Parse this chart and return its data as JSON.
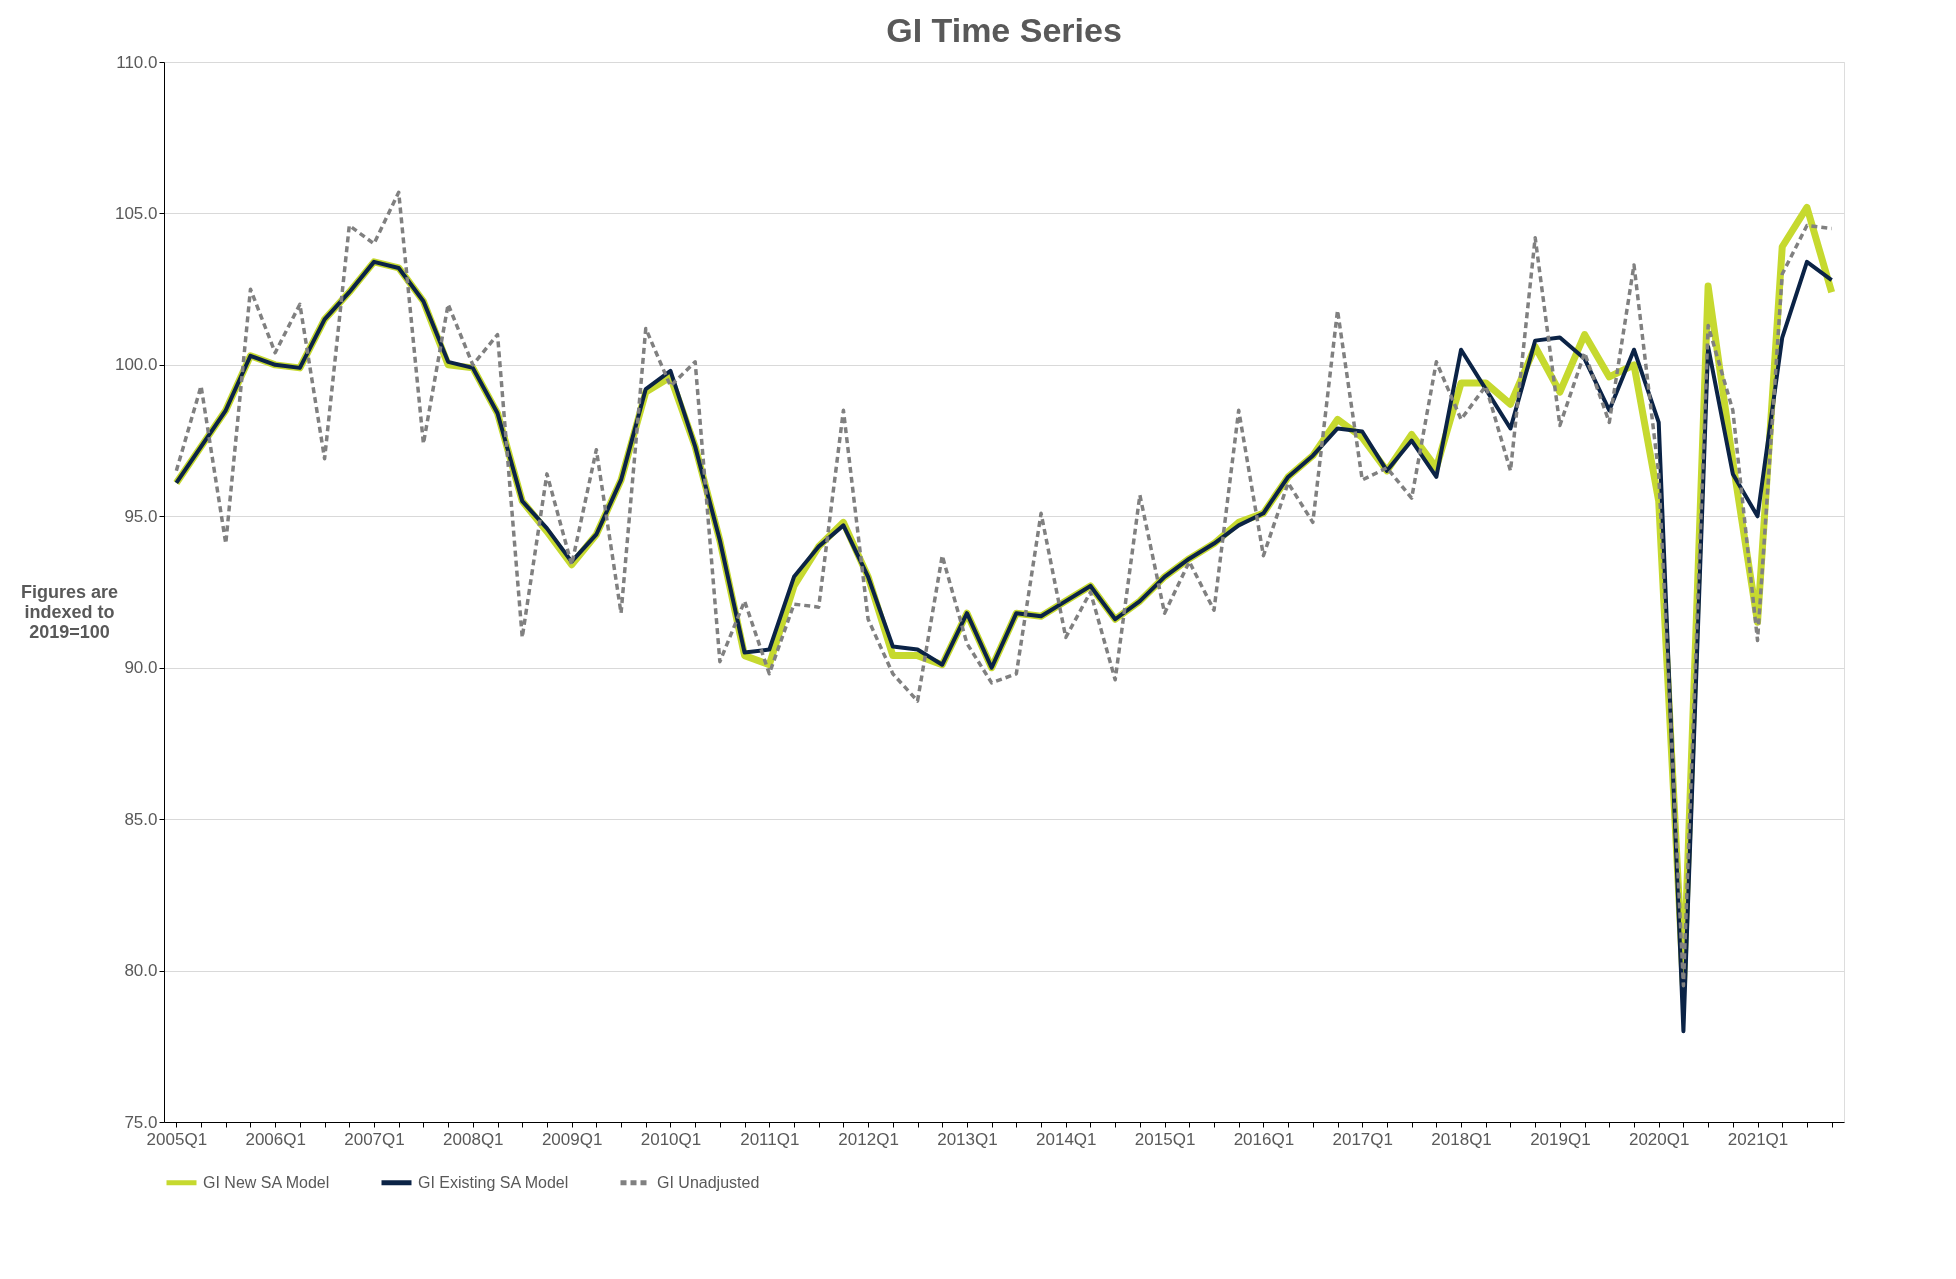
{
  "chart_data": {
    "type": "line",
    "title": "GI Time Series",
    "ylabel": "Figures are indexed to 2019=100",
    "categories": [
      "2005Q1",
      null,
      null,
      null,
      "2006Q1",
      null,
      null,
      null,
      "2007Q1",
      null,
      null,
      null,
      "2008Q1",
      null,
      null,
      null,
      "2009Q1",
      null,
      null,
      null,
      "2010Q1",
      null,
      null,
      null,
      "2011Q1",
      null,
      null,
      null,
      "2012Q1",
      null,
      null,
      null,
      "2013Q1",
      null,
      null,
      null,
      "2014Q1",
      null,
      null,
      null,
      "2015Q1",
      null,
      null,
      null,
      "2016Q1",
      null,
      null,
      null,
      "2017Q1",
      null,
      null,
      null,
      "2018Q1",
      null,
      null,
      null,
      "2019Q1",
      null,
      null,
      null,
      "2020Q1",
      null,
      null,
      null,
      "2021Q1",
      null,
      null,
      null
    ],
    "series": [
      {
        "name": "GI New SA Model",
        "color": "#c6d92f",
        "line_style": "solid",
        "values": [
          96.1,
          97.3,
          98.5,
          100.3,
          100.0,
          99.9,
          101.5,
          102.4,
          103.4,
          103.2,
          102.1,
          100.0,
          99.9,
          98.4,
          95.5,
          94.5,
          93.4,
          94.4,
          96.2,
          99.1,
          99.6,
          97.3,
          94.2,
          90.4,
          90.1,
          92.7,
          94.0,
          94.8,
          93.0,
          90.4,
          90.4,
          90.1,
          91.8,
          90.0,
          91.8,
          91.7,
          92.2,
          92.7,
          91.6,
          92.2,
          93.0,
          93.6,
          94.1,
          94.8,
          95.1,
          96.3,
          97.0,
          98.2,
          97.6,
          96.5,
          97.7,
          96.6,
          99.4,
          99.4,
          98.7,
          100.6,
          99.1,
          101.0,
          99.6,
          100.0,
          95.5,
          79.5,
          102.6,
          96.8,
          91.5,
          103.9,
          105.2,
          102.4
        ]
      },
      {
        "name": "GI Existing SA Model",
        "color": "#0b2346",
        "line_style": "solid",
        "values": [
          96.1,
          97.3,
          98.5,
          100.3,
          100.0,
          99.9,
          101.5,
          102.4,
          103.4,
          103.2,
          102.1,
          100.1,
          99.9,
          98.4,
          95.5,
          94.6,
          93.5,
          94.4,
          96.2,
          99.2,
          99.8,
          97.3,
          94.2,
          90.5,
          90.6,
          93.0,
          94.0,
          94.7,
          93.0,
          90.7,
          90.6,
          90.1,
          91.8,
          90.0,
          91.8,
          91.7,
          92.2,
          92.7,
          91.6,
          92.2,
          93.0,
          93.6,
          94.1,
          94.7,
          95.1,
          96.3,
          97.0,
          97.9,
          97.8,
          96.5,
          97.5,
          96.3,
          100.5,
          99.2,
          97.9,
          100.8,
          100.9,
          100.2,
          98.5,
          100.5,
          98.1,
          78.0,
          100.6,
          96.4,
          95.0,
          100.9,
          103.4,
          102.8
        ]
      },
      {
        "name": "GI Unadjusted",
        "color": "#808080",
        "line_style": "dashed",
        "values": [
          96.5,
          99.3,
          94.1,
          102.5,
          100.4,
          102.0,
          96.9,
          104.6,
          104.0,
          105.7,
          97.4,
          102.0,
          100.0,
          101.0,
          91.0,
          96.4,
          93.4,
          97.2,
          91.8,
          101.2,
          99.3,
          100.1,
          90.2,
          92.2,
          89.8,
          92.1,
          92.0,
          98.5,
          91.6,
          89.8,
          88.9,
          93.7,
          90.8,
          89.5,
          89.8,
          95.1,
          91.0,
          92.5,
          89.6,
          95.7,
          91.8,
          93.5,
          91.9,
          98.5,
          93.7,
          96.1,
          94.8,
          101.8,
          96.2,
          96.6,
          95.6,
          100.1,
          98.2,
          99.3,
          96.5,
          104.2,
          98.0,
          100.4,
          98.1,
          103.3,
          96.4,
          79.5,
          101.3,
          98.5,
          90.9,
          103.0,
          104.6,
          104.5
        ]
      }
    ],
    "ylim": [
      75,
      110
    ],
    "yticks": [
      {
        "value": 75,
        "label": "75.0"
      },
      {
        "value": 80,
        "label": "80.0"
      },
      {
        "value": 85,
        "label": "85.0"
      },
      {
        "value": 90,
        "label": "90.0"
      },
      {
        "value": 95,
        "label": "95.0"
      },
      {
        "value": 100,
        "label": "100.0"
      },
      {
        "value": 105,
        "label": "105.0"
      },
      {
        "value": 110,
        "label": "110.0"
      }
    ],
    "grid": "y",
    "legend": "bottom"
  }
}
